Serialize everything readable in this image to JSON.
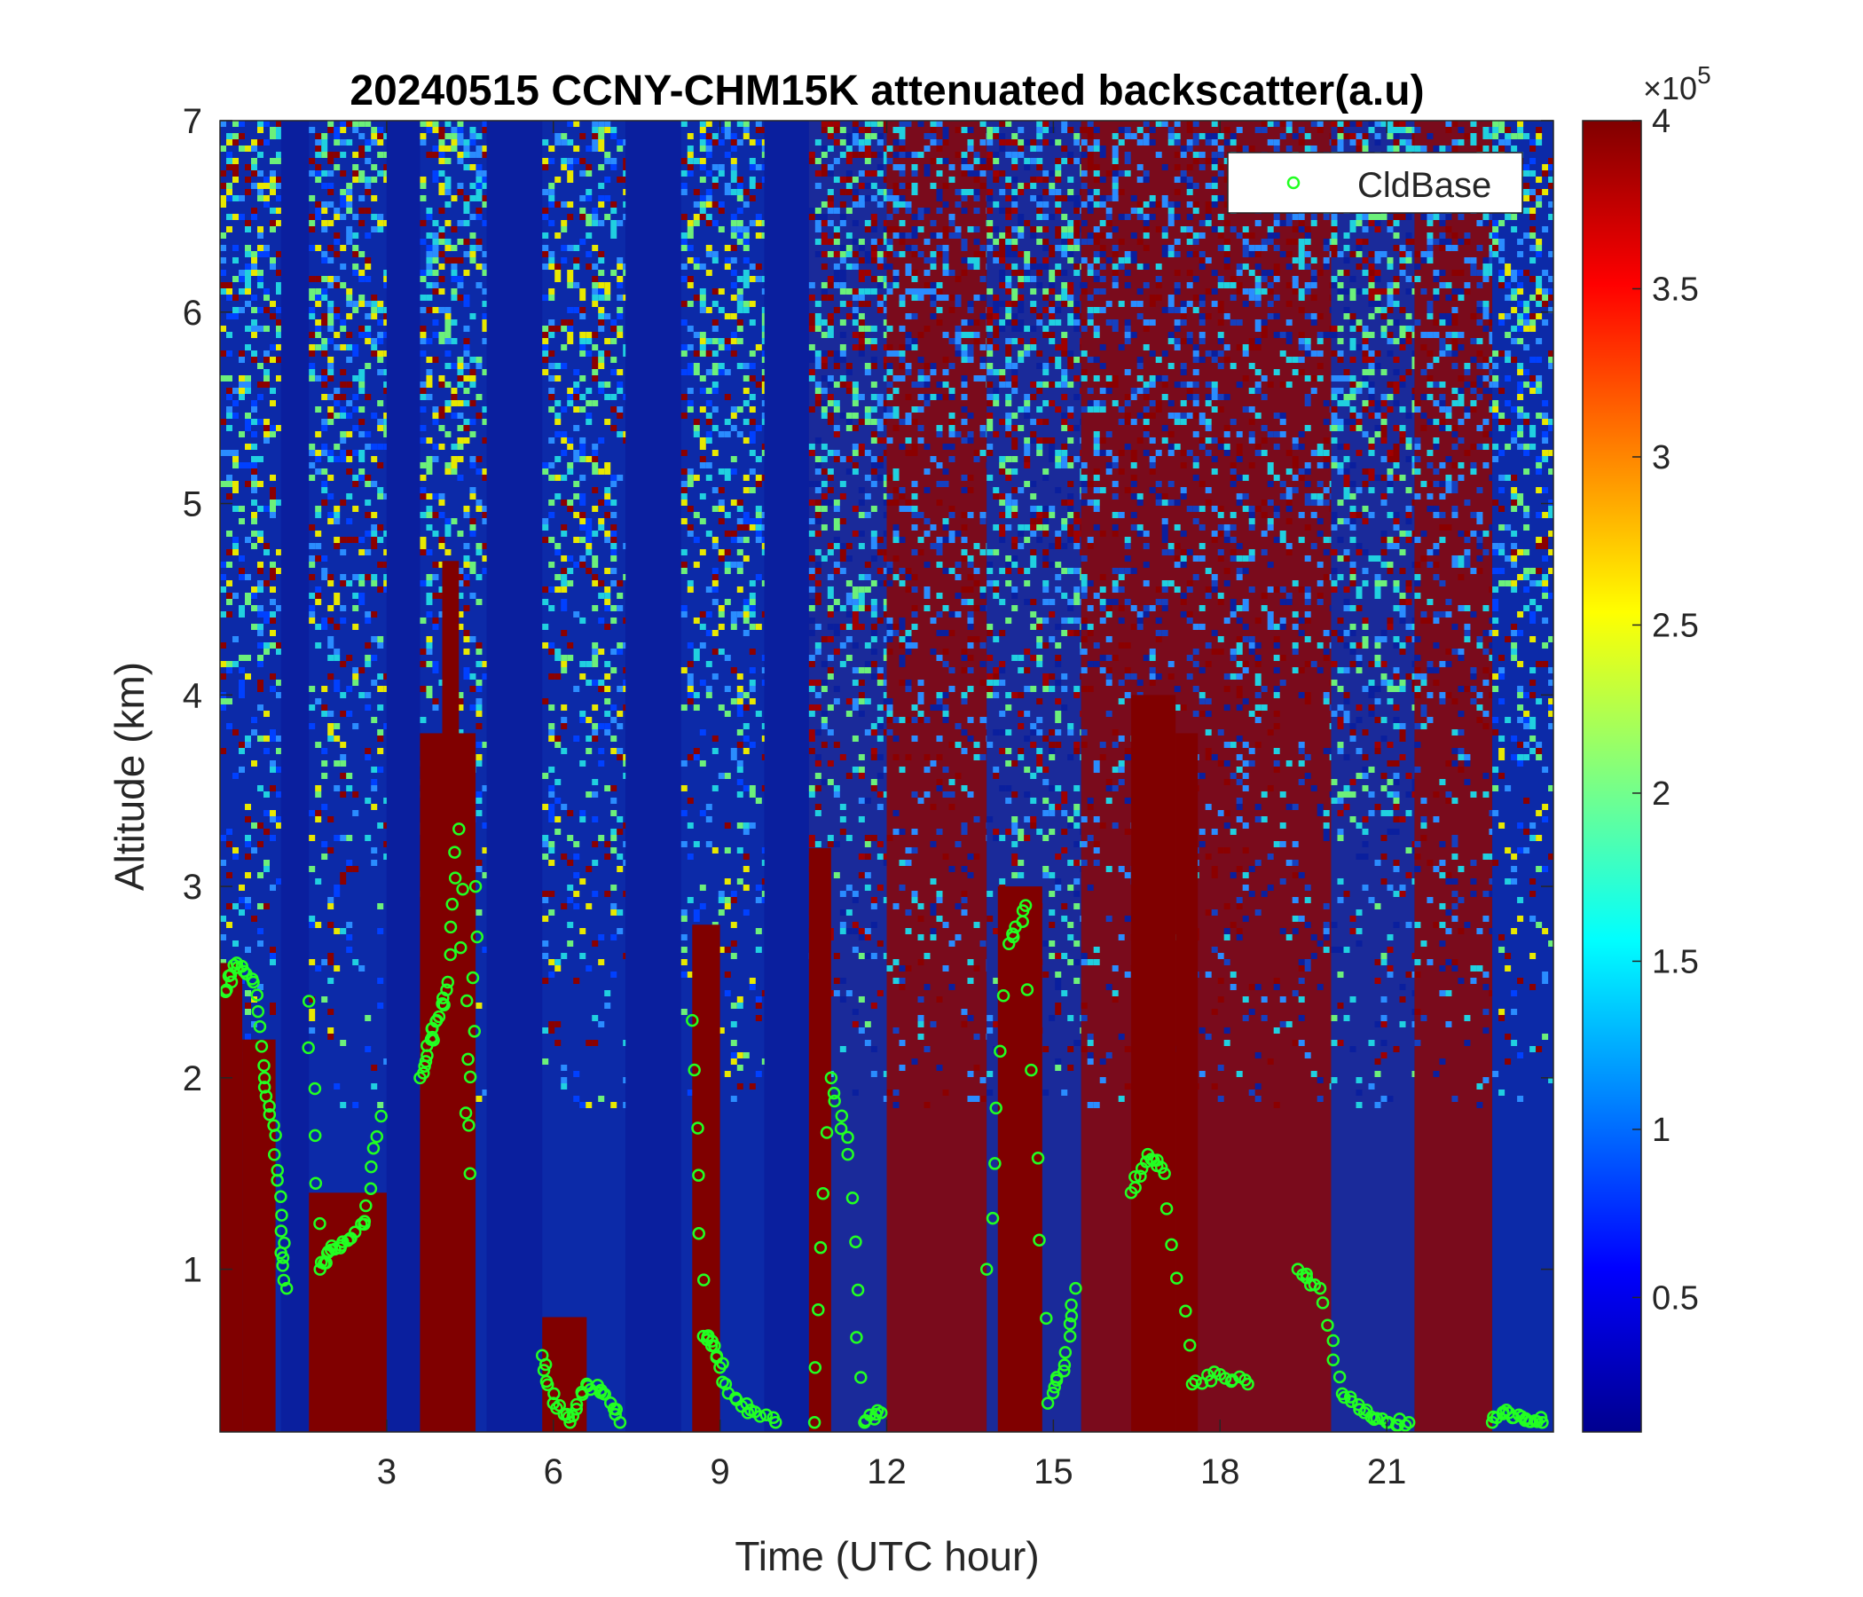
{
  "chart_data": {
    "type": "heatmap",
    "title": "20240515 CCNY-CHM15K attenuated backscatter(a.u)",
    "xlabel": "Time (UTC hour)",
    "ylabel": "Altitude (km)",
    "xlim": [
      0,
      24
    ],
    "ylim": [
      0.15,
      7
    ],
    "x_ticks": [
      3,
      6,
      9,
      12,
      15,
      18,
      21
    ],
    "x_tick_labels": [
      "3",
      "6",
      "9",
      "12",
      "15",
      "18",
      "21"
    ],
    "y_ticks": [
      1,
      2,
      3,
      4,
      5,
      6,
      7
    ],
    "y_tick_labels": [
      "1",
      "2",
      "3",
      "4",
      "5",
      "6",
      "7"
    ],
    "colorbar": {
      "colormap": "jet",
      "clim": [
        0.1,
        4
      ],
      "ticks": [
        0.5,
        1,
        1.5,
        2,
        2.5,
        3,
        3.5,
        4
      ],
      "tick_labels": [
        "0.5",
        "1",
        "1.5",
        "2",
        "2.5",
        "3",
        "3.5",
        "4"
      ],
      "exponent_label": "×10",
      "exponent_power": "5"
    },
    "legend": {
      "position": "top-right",
      "entries": [
        "CldBase"
      ]
    },
    "grid": false,
    "background_regimes": [
      {
        "x": [
          0.0,
          1.1
        ],
        "level": "noisy-low"
      },
      {
        "x": [
          1.1,
          1.6
        ],
        "level": "clean-low"
      },
      {
        "x": [
          1.6,
          3.0
        ],
        "level": "noisy-low"
      },
      {
        "x": [
          3.0,
          3.6
        ],
        "level": "clean-low"
      },
      {
        "x": [
          3.6,
          4.8
        ],
        "level": "noisy-low"
      },
      {
        "x": [
          4.8,
          5.8
        ],
        "level": "clean-low"
      },
      {
        "x": [
          5.8,
          7.3
        ],
        "level": "noisy-low"
      },
      {
        "x": [
          7.3,
          8.3
        ],
        "level": "clean-low"
      },
      {
        "x": [
          8.3,
          9.8
        ],
        "level": "noisy-low"
      },
      {
        "x": [
          9.8,
          10.6
        ],
        "level": "clean-low"
      },
      {
        "x": [
          10.6,
          12.0
        ],
        "level": "noisy-mixed"
      },
      {
        "x": [
          12.0,
          13.8
        ],
        "level": "noisy-high"
      },
      {
        "x": [
          13.8,
          15.5
        ],
        "level": "noisy-mixed"
      },
      {
        "x": [
          15.5,
          20.0
        ],
        "level": "noisy-high"
      },
      {
        "x": [
          20.0,
          21.5
        ],
        "level": "noisy-mixed"
      },
      {
        "x": [
          21.5,
          22.9
        ],
        "level": "noisy-high"
      },
      {
        "x": [
          22.9,
          24.0
        ],
        "level": "noisy-low"
      }
    ],
    "strong_layers": [
      {
        "x": [
          0.0,
          0.4
        ],
        "top": 2.6
      },
      {
        "x": [
          0.4,
          1.0
        ],
        "top": 2.2
      },
      {
        "x": [
          1.6,
          3.0
        ],
        "top": 1.4
      },
      {
        "x": [
          3.6,
          4.6
        ],
        "top": 3.8
      },
      {
        "x": [
          4.0,
          4.3
        ],
        "top": 4.7
      },
      {
        "x": [
          5.8,
          6.6
        ],
        "top": 0.75
      },
      {
        "x": [
          8.5,
          9.0
        ],
        "top": 2.8
      },
      {
        "x": [
          10.6,
          11.0
        ],
        "top": 3.2
      },
      {
        "x": [
          14.0,
          14.8
        ],
        "top": 3.0
      },
      {
        "x": [
          16.4,
          17.2
        ],
        "top": 4.0
      },
      {
        "x": [
          17.2,
          17.6
        ],
        "top": 3.8
      }
    ],
    "cloud_base_series": [
      {
        "name": "CldBase",
        "x": [
          0.1,
          0.3,
          0.6,
          0.8,
          1.0,
          1.1,
          1.2
        ],
        "y": [
          2.45,
          2.6,
          2.5,
          2.0,
          1.7,
          1.2,
          0.9
        ]
      },
      {
        "name": "CldBase",
        "x": [
          1.6,
          1.8,
          2.0,
          2.3,
          2.6,
          2.9
        ],
        "y": [
          2.4,
          1.0,
          1.1,
          1.15,
          1.25,
          1.8
        ]
      },
      {
        "name": "CldBase",
        "x": [
          3.6,
          3.8,
          3.9,
          4.1,
          4.3,
          4.5,
          4.6
        ],
        "y": [
          2.0,
          2.2,
          2.3,
          2.5,
          3.3,
          1.5,
          3.0
        ]
      },
      {
        "name": "CldBase",
        "x": [
          5.8,
          6.0,
          6.3,
          6.6,
          6.9,
          7.2
        ],
        "y": [
          0.55,
          0.3,
          0.2,
          0.4,
          0.35,
          0.2
        ]
      },
      {
        "name": "CldBase",
        "x": [
          8.5,
          8.7,
          8.9,
          9.1,
          9.5,
          10.0
        ],
        "y": [
          2.3,
          0.65,
          0.6,
          0.4,
          0.25,
          0.2
        ]
      },
      {
        "name": "CldBase",
        "x": [
          10.7,
          11.0,
          11.3,
          11.6,
          11.9
        ],
        "y": [
          0.2,
          2.0,
          1.6,
          0.2,
          0.25
        ]
      },
      {
        "name": "CldBase",
        "x": [
          13.8,
          14.2,
          14.5,
          14.9,
          15.2,
          15.4
        ],
        "y": [
          1.0,
          2.7,
          2.9,
          0.3,
          0.5,
          0.9
        ]
      },
      {
        "name": "CldBase",
        "x": [
          16.4,
          16.7,
          17.0,
          17.5,
          18.0,
          18.5
        ],
        "y": [
          1.4,
          1.6,
          1.5,
          0.4,
          0.45,
          0.4
        ]
      },
      {
        "name": "CldBase",
        "x": [
          19.4,
          19.8,
          20.2,
          20.6,
          21.0,
          21.4
        ],
        "y": [
          1.0,
          0.9,
          0.35,
          0.25,
          0.2,
          0.2
        ]
      },
      {
        "name": "CldBase",
        "x": [
          22.9,
          23.2,
          23.5,
          23.8
        ],
        "y": [
          0.2,
          0.25,
          0.22,
          0.2
        ]
      }
    ]
  }
}
